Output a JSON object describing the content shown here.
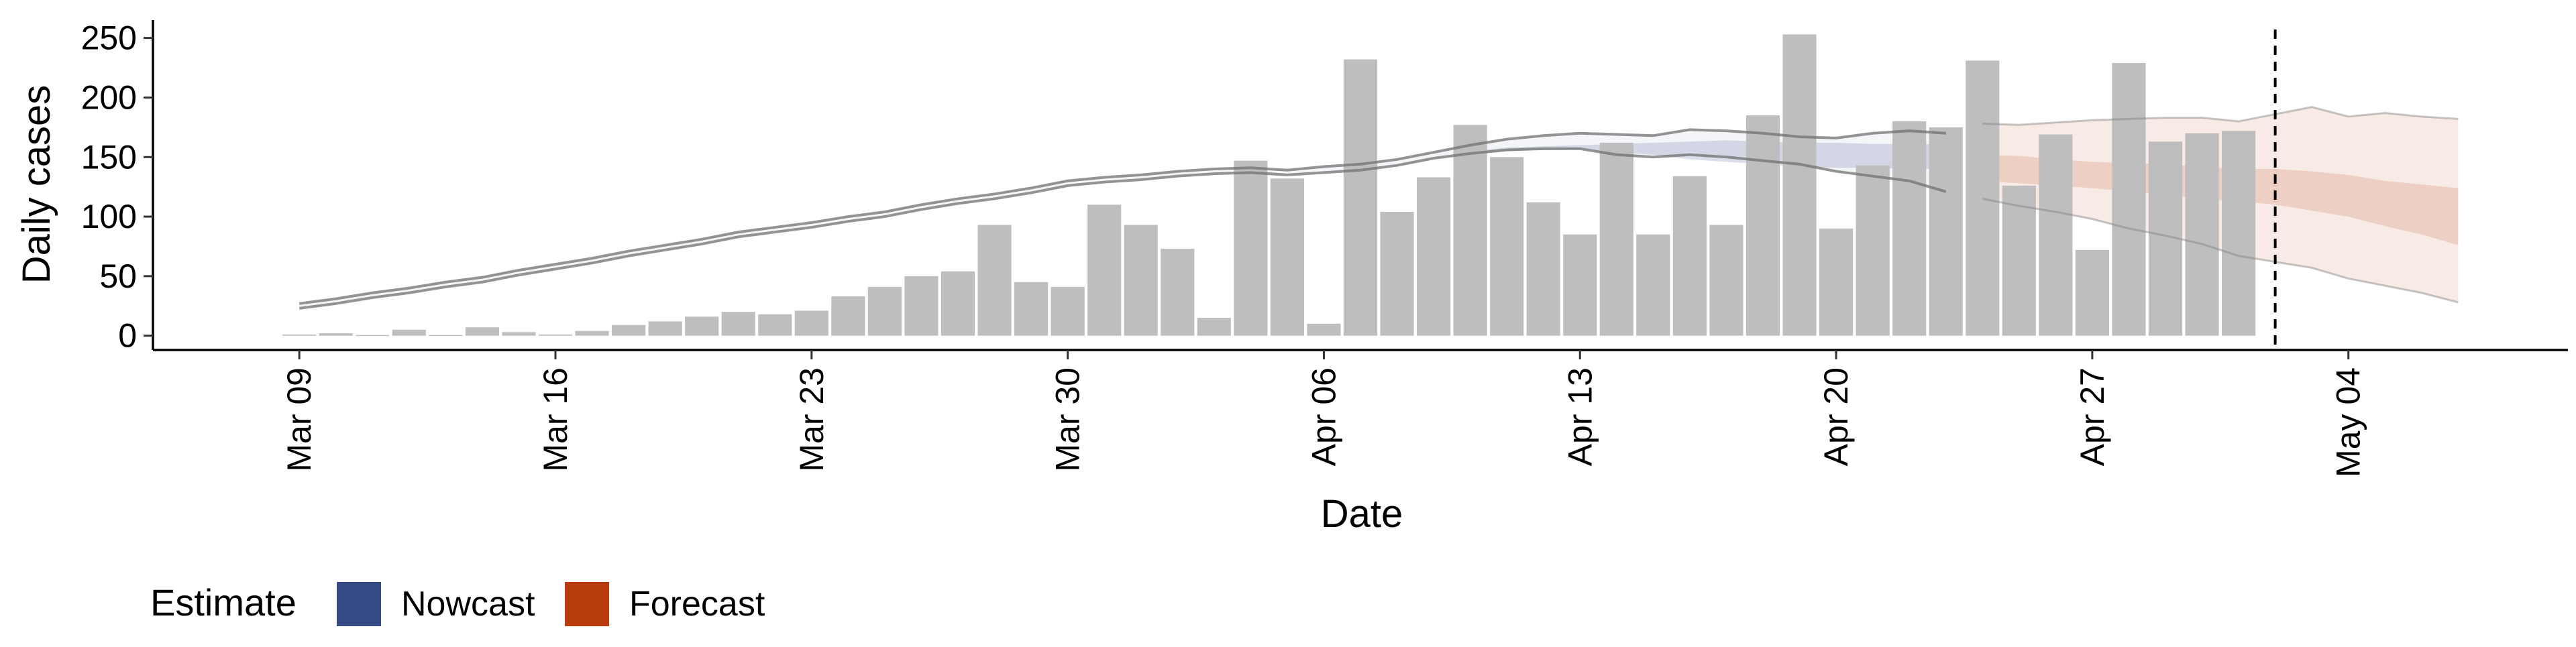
{
  "chart_data": {
    "type": "bar",
    "title": "",
    "xlabel": "Date",
    "ylabel": "Daily cases",
    "x_range": [
      "2020-03-05",
      "2020-05-10"
    ],
    "ylim": [
      -12,
      265
    ],
    "y_ticks": [
      0,
      50,
      100,
      150,
      200,
      250
    ],
    "x_ticks": [
      {
        "date": "2020-03-09",
        "label": "Mar 09"
      },
      {
        "date": "2020-03-16",
        "label": "Mar 16"
      },
      {
        "date": "2020-03-23",
        "label": "Mar 23"
      },
      {
        "date": "2020-03-30",
        "label": "Mar 30"
      },
      {
        "date": "2020-04-06",
        "label": "Apr 06"
      },
      {
        "date": "2020-04-13",
        "label": "Apr 13"
      },
      {
        "date": "2020-04-20",
        "label": "Apr 20"
      },
      {
        "date": "2020-04-27",
        "label": "Apr 27"
      },
      {
        "date": "2020-05-04",
        "label": "May 04"
      }
    ],
    "x_tick_rotation": -90,
    "grid": false,
    "bars": {
      "start_date": "2020-03-09",
      "color": "#bebebe",
      "values": [
        1,
        2,
        0,
        5,
        0,
        7,
        3,
        1,
        4,
        9,
        12,
        16,
        20,
        18,
        21,
        33,
        41,
        50,
        54,
        93,
        45,
        41,
        110,
        93,
        73,
        15,
        147,
        132,
        10,
        232,
        104,
        133,
        177,
        150,
        112,
        85,
        162,
        85,
        134,
        93,
        185,
        253,
        90,
        143,
        180,
        175,
        231,
        126,
        169,
        72,
        229,
        163,
        170,
        172
      ]
    },
    "nowcast_band": {
      "color": "#3c5088",
      "dates": [
        "2020-04-10",
        "2020-04-11",
        "2020-04-12",
        "2020-04-13",
        "2020-04-14",
        "2020-04-15",
        "2020-04-16",
        "2020-04-17",
        "2020-04-18",
        "2020-04-19",
        "2020-04-20",
        "2020-04-21",
        "2020-04-22",
        "2020-04-23"
      ],
      "lower": [
        152,
        155,
        156,
        157,
        154,
        152,
        148,
        146,
        144,
        142,
        141,
        141,
        140,
        140
      ],
      "upper": [
        155,
        158,
        159,
        160,
        161,
        162,
        163,
        164,
        163,
        162,
        162,
        161,
        161,
        161
      ]
    },
    "nowcast_outer": {
      "dates": [
        "2020-03-09",
        "2020-03-10",
        "2020-03-11",
        "2020-03-12",
        "2020-03-13",
        "2020-03-14",
        "2020-03-15",
        "2020-03-16",
        "2020-03-17",
        "2020-03-18",
        "2020-03-19",
        "2020-03-20",
        "2020-03-21",
        "2020-03-22",
        "2020-03-23",
        "2020-03-24",
        "2020-03-25",
        "2020-03-26",
        "2020-03-27",
        "2020-03-28",
        "2020-03-29",
        "2020-03-30",
        "2020-03-31",
        "2020-04-01",
        "2020-04-02",
        "2020-04-03",
        "2020-04-04",
        "2020-04-05",
        "2020-04-06",
        "2020-04-07",
        "2020-04-08",
        "2020-04-09",
        "2020-04-10",
        "2020-04-11",
        "2020-04-12",
        "2020-04-13",
        "2020-04-14",
        "2020-04-15",
        "2020-04-16",
        "2020-04-17",
        "2020-04-18",
        "2020-04-19",
        "2020-04-20",
        "2020-04-21",
        "2020-04-22",
        "2020-04-23"
      ],
      "upper": [
        27,
        31,
        36,
        40,
        45,
        49,
        55,
        60,
        65,
        71,
        76,
        81,
        87,
        91,
        95,
        100,
        104,
        110,
        115,
        119,
        124,
        130,
        133,
        135,
        138,
        140,
        141,
        139,
        142,
        144,
        148,
        154,
        160,
        165,
        168,
        170,
        169,
        168,
        173,
        172,
        170,
        167,
        166,
        170,
        172,
        170
      ],
      "lower": [
        23,
        27,
        32,
        36,
        41,
        45,
        51,
        56,
        61,
        67,
        72,
        77,
        83,
        87,
        91,
        96,
        100,
        106,
        111,
        115,
        120,
        126,
        129,
        131,
        134,
        136,
        137,
        135,
        137,
        139,
        143,
        149,
        153,
        156,
        157,
        157,
        152,
        150,
        152,
        150,
        147,
        144,
        138,
        134,
        130,
        121
      ]
    },
    "forecast_band": {
      "color": "#b83c0e",
      "dates": [
        "2020-04-24",
        "2020-04-25",
        "2020-04-26",
        "2020-04-27",
        "2020-04-28",
        "2020-04-29",
        "2020-04-30",
        "2020-05-01",
        "2020-05-02",
        "2020-05-03",
        "2020-05-04",
        "2020-05-05",
        "2020-05-06",
        "2020-05-07"
      ],
      "inner_lower": [
        130,
        128,
        126,
        124,
        121,
        118,
        115,
        113,
        110,
        105,
        100,
        92,
        85,
        76
      ],
      "inner_upper": [
        152,
        151,
        148,
        146,
        145,
        144,
        142,
        140,
        140,
        138,
        135,
        130,
        127,
        124
      ],
      "outer_lower": [
        115,
        109,
        104,
        98,
        90,
        84,
        77,
        67,
        62,
        57,
        48,
        42,
        36,
        28
      ],
      "outer_upper": [
        178,
        177,
        179,
        181,
        182,
        183,
        183,
        180,
        186,
        192,
        184,
        187,
        184,
        182
      ]
    },
    "forecast_date": {
      "date": "2020-05-02",
      "style": "dashed"
    },
    "legend": {
      "position": "bottom-left",
      "title": "Estimate",
      "entries": [
        {
          "label": "Nowcast",
          "color": "#334a84"
        },
        {
          "label": "Forecast",
          "color": "#b83c0e"
        }
      ]
    }
  }
}
